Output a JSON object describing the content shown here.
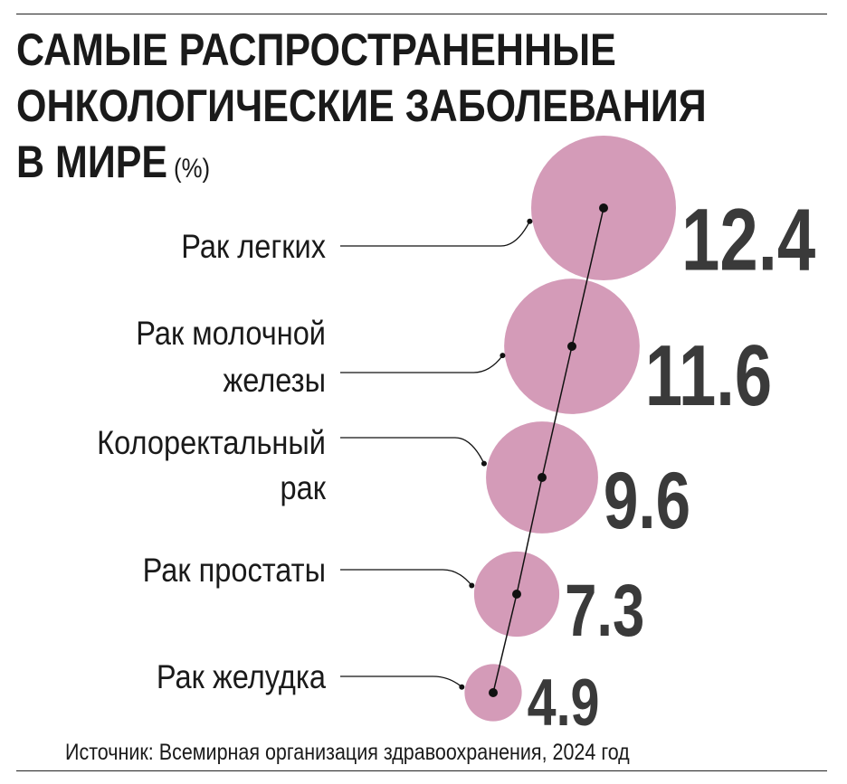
{
  "title_lines": [
    "САМЫЕ РАСПРОСТРАНЕННЫЕ",
    "ОНКОЛОГИЧЕСКИЕ ЗАБОЛЕВАНИЯ",
    "В МИРЕ"
  ],
  "title_unit": "(%)",
  "source": "Источник: Всемирная организация здравоохранения, 2024 год",
  "colors": {
    "bubble": "#d49bb8",
    "text": "#1a1a1a",
    "value": "#3a3a3a"
  },
  "chart_data": {
    "type": "bubble",
    "title": "САМЫЕ РАСПРОСТРАНЕННЫЕ ОНКОЛОГИЧЕСКИЕ ЗАБОЛЕВАНИЯ В МИРЕ",
    "unit": "%",
    "categories": [
      [
        "Рак легких"
      ],
      [
        "Рак молочной",
        "железы"
      ],
      [
        "Колоректальный",
        "рак"
      ],
      [
        "Рак простаты"
      ],
      [
        "Рак желудка"
      ]
    ],
    "values": [
      12.4,
      11.6,
      9.6,
      7.3,
      4.9
    ],
    "value_labels": [
      "12.4",
      "11.6",
      "9.6",
      "7.3",
      "4.9"
    ]
  }
}
